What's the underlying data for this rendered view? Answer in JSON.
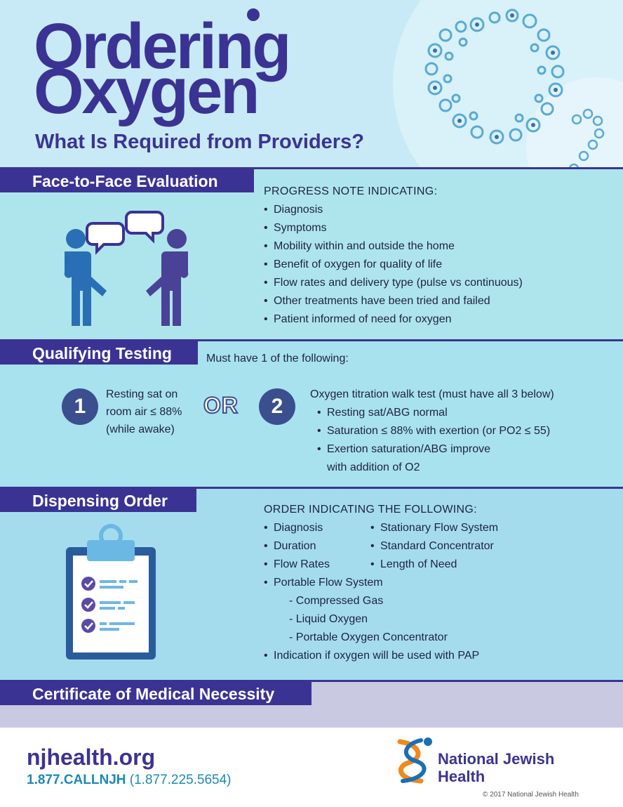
{
  "header": {
    "title_line1": "Ordering",
    "title_line2": "Oxygen",
    "subtitle": "What Is Required from Providers?"
  },
  "face_to_face": {
    "title": "Face-to-Face Evaluation",
    "heading": "PROGRESS NOTE INDICATING:",
    "items": [
      "Diagnosis",
      "Symptoms",
      "Mobility within and outside the home",
      "Benefit of oxygen for quality of life",
      "Flow rates and delivery type (pulse vs continuous)",
      "Other treatments have been tried and failed",
      "Patient informed of need for oxygen"
    ]
  },
  "qualifying": {
    "title": "Qualifying Testing",
    "intro": "Must have 1 of the following:",
    "option1": {
      "number": "1",
      "lines": [
        "Resting sat on",
        "room air ≤ 88%",
        "(while awake)"
      ]
    },
    "or_label": "OR",
    "option2": {
      "number": "2",
      "heading": "Oxygen titration walk test (must have all 3 below)",
      "items": [
        "Resting sat/ABG normal",
        "Saturation ≤ 88% with exertion (or PO2 ≤ 55)",
        "Exertion saturation/ABG improve",
        "with addition of O2"
      ]
    }
  },
  "dispensing": {
    "title": "Dispensing Order",
    "heading": "ORDER INDICATING THE FOLLOWING:",
    "col1": [
      "Diagnosis",
      "Duration",
      "Flow Rates"
    ],
    "col2": [
      "Stationary Flow System",
      "Standard Concentrator",
      "Length of Need"
    ],
    "portable": "Portable Flow System",
    "portable_sub": [
      "- Compressed Gas",
      "- Liquid Oxygen",
      "- Portable Oxygen Concentrator"
    ],
    "pap": "Indication if oxygen will be used with PAP"
  },
  "certificate": {
    "title": "Certificate of Medical Necessity"
  },
  "footer": {
    "website": "njhealth.org",
    "phone_main": "1.877.CALLNJH",
    "phone_alt": "(1.877.225.5654)",
    "org_line1": "National Jewish",
    "org_line2": "Health",
    "copyright": "© 2017 National Jewish Health"
  },
  "colors": {
    "brand_purple": "#3b3393",
    "header_bg": "#c8eaf6",
    "teal_band": "#aee5ec",
    "lavender_band": "#c9c9e2",
    "phone_blue": "#1a8ab8"
  }
}
